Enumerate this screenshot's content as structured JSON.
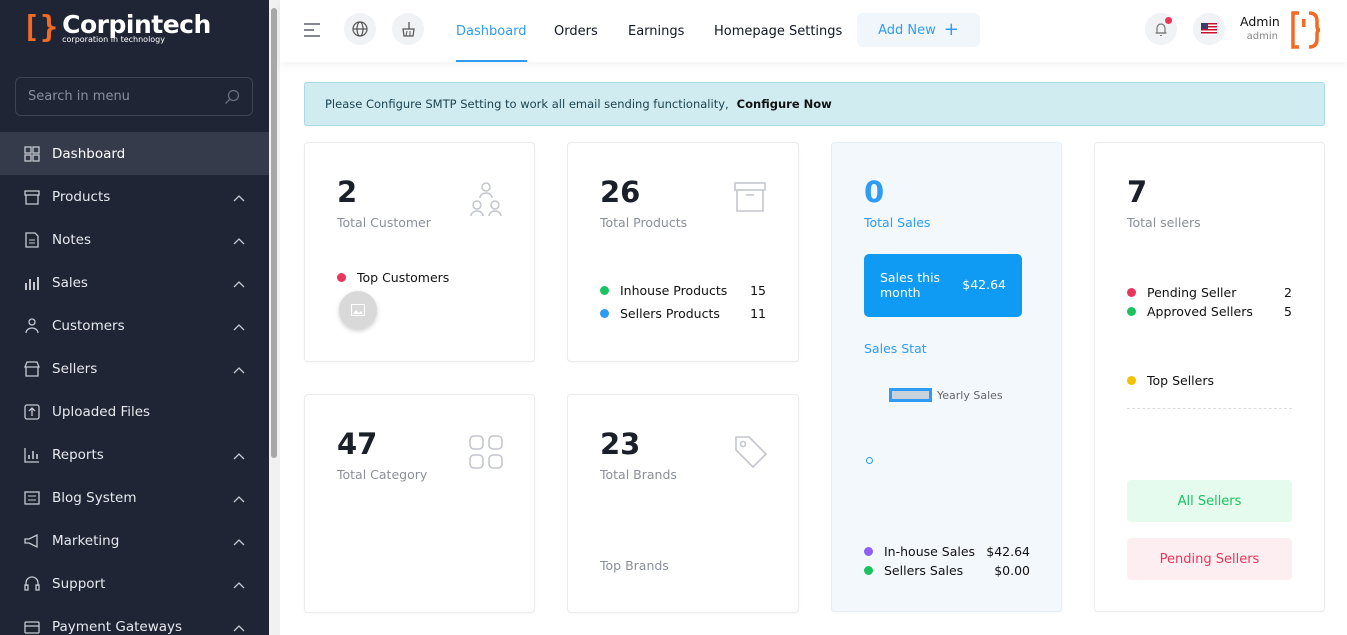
{
  "brand": {
    "name": "Corpintech",
    "tagline": "corporation in technology",
    "accent": "#f26a23"
  },
  "sidebar": {
    "search_placeholder": "Search in menu",
    "items": [
      {
        "label": "Dashboard",
        "icon": "grid-icon",
        "active": true,
        "chevron": false
      },
      {
        "label": "Products",
        "icon": "box-icon",
        "chevron": true
      },
      {
        "label": "Notes",
        "icon": "note-icon",
        "chevron": true
      },
      {
        "label": "Sales",
        "icon": "chart-bars-icon",
        "chevron": true
      },
      {
        "label": "Customers",
        "icon": "users-icon",
        "chevron": true
      },
      {
        "label": "Sellers",
        "icon": "store-icon",
        "chevron": true
      },
      {
        "label": "Uploaded Files",
        "icon": "upload-icon",
        "chevron": false
      },
      {
        "label": "Reports",
        "icon": "report-icon",
        "chevron": true
      },
      {
        "label": "Blog System",
        "icon": "blog-icon",
        "chevron": true
      },
      {
        "label": "Marketing",
        "icon": "megaphone-icon",
        "chevron": true
      },
      {
        "label": "Support",
        "icon": "support-icon",
        "chevron": true
      },
      {
        "label": "Payment Gateways",
        "icon": "payment-icon",
        "chevron": true
      }
    ]
  },
  "topbar": {
    "tabs": [
      "Dashboard",
      "Orders",
      "Earnings",
      "Homepage Settings"
    ],
    "active_tab": "Dashboard",
    "add_new": "Add New",
    "user_name": "Admin",
    "user_role": "admin"
  },
  "alert": {
    "text": "Please Configure SMTP Setting to work all email sending functionality,",
    "link": "Configure Now"
  },
  "cards": {
    "customers": {
      "value": "2",
      "label": "Total Customer",
      "list_title": "Top Customers"
    },
    "products": {
      "value": "26",
      "label": "Total Products",
      "inhouse_label": "Inhouse Products",
      "inhouse_value": "15",
      "sellers_label": "Sellers Products",
      "sellers_value": "11"
    },
    "category": {
      "value": "47",
      "label": "Total Category"
    },
    "brands": {
      "value": "23",
      "label": "Total Brands",
      "top_label": "Top Brands"
    },
    "sales": {
      "value": "0",
      "label": "Total Sales",
      "month_label": "Sales this month",
      "month_value": "$42.64",
      "stat_label": "Sales Stat",
      "legend": "Yearly Sales",
      "inhouse_label": "In-house Sales",
      "inhouse_value": "$42.64",
      "sellers_label": "Sellers Sales",
      "sellers_value": "$0.00"
    },
    "sellers": {
      "value": "7",
      "label": "Total sellers",
      "pending_label": "Pending Seller",
      "pending_value": "2",
      "approved_label": "Approved Sellers",
      "approved_value": "5",
      "top_label": "Top Sellers",
      "all_btn": "All Sellers",
      "pending_btn": "Pending Sellers"
    }
  },
  "colors": {
    "blue": "#2e9cf3",
    "sidebar": "#1f2535",
    "red": "#e8365d",
    "green": "#1bc262",
    "purple": "#8f5ef2",
    "yellow": "#f5c000"
  }
}
